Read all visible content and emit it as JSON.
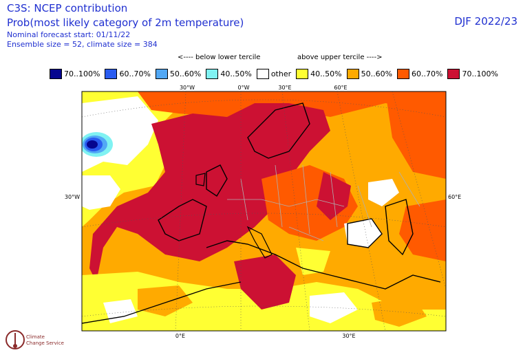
{
  "header": {
    "title": "C3S: NCEP contribution",
    "subtitle": "Prob(most likely category of 2m temperature)",
    "forecast_start": "Nominal forecast start: 01/11/22",
    "ensemble": "Ensemble size = 52, climate size = 384",
    "period": "DJF 2022/23"
  },
  "terciles": {
    "below": "<---- below lower tercile",
    "above": "above upper tercile ---->"
  },
  "legend": [
    {
      "label": "70..100%",
      "color": "#06068f"
    },
    {
      "label": "60..70%",
      "color": "#2a5cf0"
    },
    {
      "label": "50..60%",
      "color": "#52a8f5"
    },
    {
      "label": "40..50%",
      "color": "#80f2f2"
    },
    {
      "label": "other",
      "color": "#ffffff"
    },
    {
      "label": "40..50%",
      "color": "#ffff33"
    },
    {
      "label": "50..60%",
      "color": "#ffaa00"
    },
    {
      "label": "60..70%",
      "color": "#ff5a00"
    },
    {
      "label": "70..100%",
      "color": "#cc1133"
    }
  ],
  "map": {
    "top_ticks": [
      "30°W",
      "0°W",
      "30°E",
      "60°E"
    ],
    "side_ticks": [
      "30°W",
      "60°E"
    ],
    "bottom_ticks": [
      "0°E",
      "30°E"
    ],
    "colors": {
      "red": "#cc1133",
      "orange_red": "#ff5a00",
      "orange": "#ffaa00",
      "yellow": "#ffff33",
      "white": "#ffffff",
      "blue_dark": "#06068f",
      "blue_mid": "#2a5cf0",
      "blue_light": "#52a8f5",
      "cyan": "#80f2f2"
    }
  },
  "logo": {
    "line1": "Climate",
    "line2": "Change Service"
  }
}
